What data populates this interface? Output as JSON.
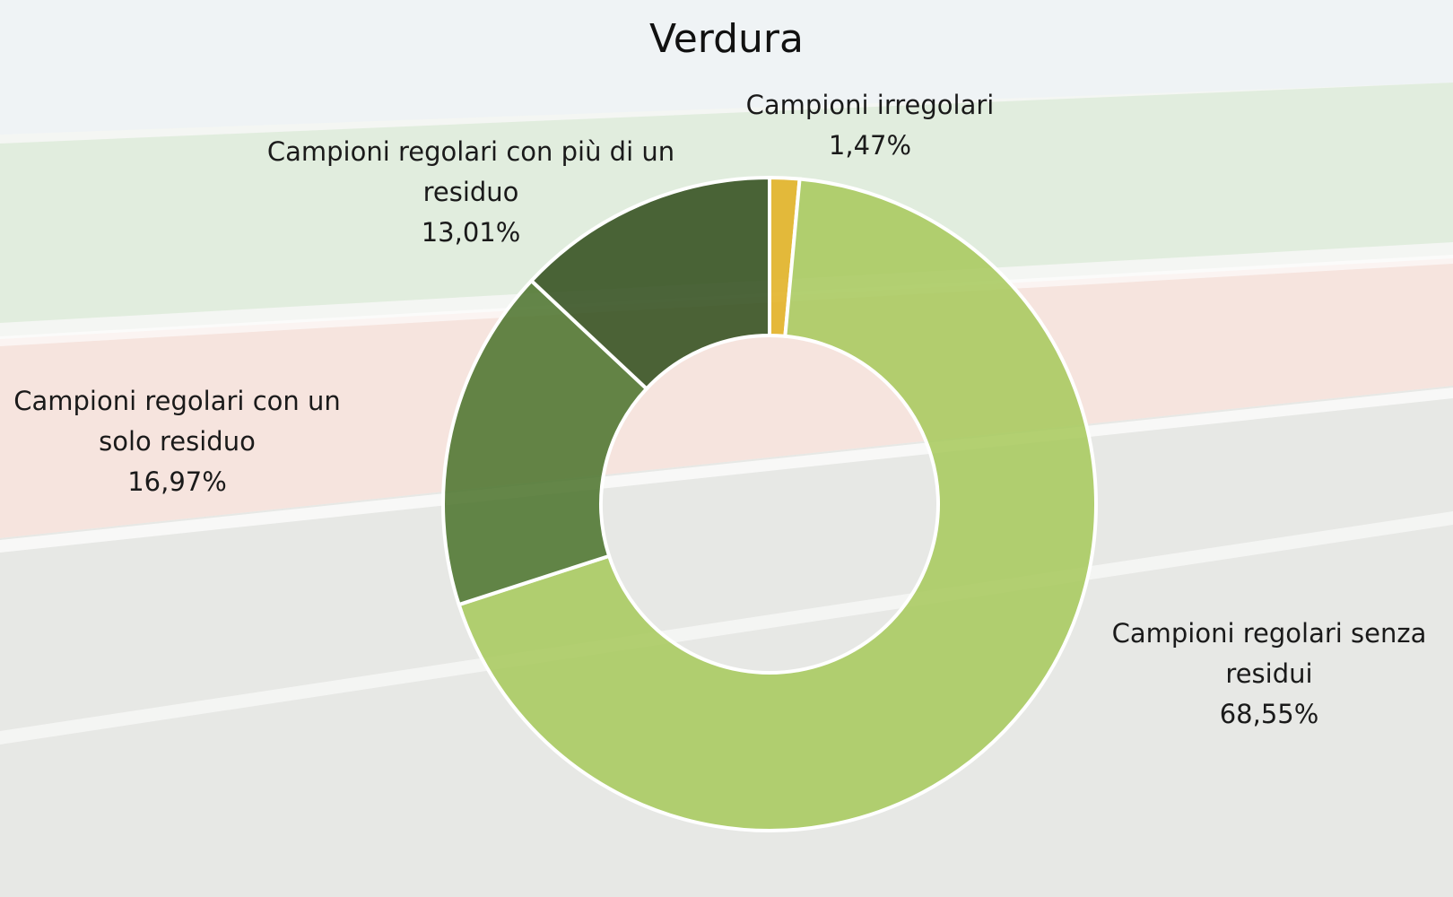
{
  "chart_data": {
    "type": "pie",
    "variant": "doughnut",
    "title": "Verdura",
    "slices": [
      {
        "name": "Campioni irregolari",
        "value": 1.47,
        "value_label": "1,47%",
        "color": "#e2b223",
        "label_lines": [
          "Campioni irregolari"
        ]
      },
      {
        "name": "Campioni regolari senza residui",
        "value": 68.55,
        "value_label": "68,55%",
        "color": "#a9c95f",
        "label_lines": [
          "Campioni regolari senza",
          "residui"
        ]
      },
      {
        "name": "Campioni regolari con un solo residuo",
        "value": 16.97,
        "value_label": "16,97%",
        "color": "#4f7530",
        "label_lines": [
          "Campioni regolari con un",
          "solo residuo"
        ]
      },
      {
        "name": "Campioni regolari con più di un residuo",
        "value": 13.01,
        "value_label": "13,01%",
        "color": "#33501f",
        "label_lines": [
          "Campioni regolari con più di un",
          "residuo"
        ]
      }
    ],
    "start_angle_deg": 0,
    "direction": "clockwise",
    "legend": "none"
  }
}
